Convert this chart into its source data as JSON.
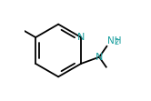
{
  "bg_color": "#ffffff",
  "line_color": "#000000",
  "atom_color": "#1a9e9e",
  "line_width": 1.3,
  "fig_width": 1.66,
  "fig_height": 1.11,
  "dpi": 100,
  "N_label": "N",
  "N_font": 8,
  "nh2_label": "NH",
  "nh2_sub": "2",
  "nh2_font": 8,
  "xlim": [
    0.0,
    1.0
  ],
  "ylim": [
    0.0,
    1.0
  ]
}
